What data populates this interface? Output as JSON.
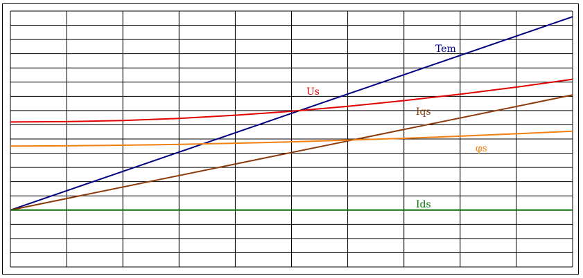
{
  "chart_data": {
    "type": "line",
    "title": "",
    "xlabel": "",
    "ylabel": "",
    "x_gridlines": 10,
    "y_gridlines": 18,
    "grid": true,
    "xlim": [
      0,
      10
    ],
    "ylim": [
      -4,
      14
    ],
    "series": [
      {
        "name": "Tem",
        "color": "#000080",
        "x": [
          0,
          10
        ],
        "y": [
          0,
          13.6
        ]
      },
      {
        "name": "Us",
        "color": "#e00000",
        "x": [
          0,
          1,
          2,
          3,
          4,
          5,
          6,
          7,
          8,
          9,
          10
        ],
        "y": [
          6.2,
          6.22,
          6.3,
          6.45,
          6.67,
          6.95,
          7.3,
          7.7,
          8.15,
          8.65,
          9.2
        ]
      },
      {
        "name": "Iqs",
        "color": "#8b3a0a",
        "x": [
          0,
          10
        ],
        "y": [
          0,
          8.1
        ]
      },
      {
        "name": "φs",
        "color": "#f08010",
        "x": [
          0,
          1,
          2,
          3,
          4,
          5,
          6,
          7,
          8,
          9,
          10
        ],
        "y": [
          4.5,
          4.52,
          4.56,
          4.62,
          4.7,
          4.8,
          4.92,
          5.05,
          5.2,
          5.37,
          5.55
        ]
      },
      {
        "name": "Ids",
        "color": "#007000",
        "x": [
          0,
          10
        ],
        "y": [
          0,
          0
        ]
      }
    ]
  }
}
